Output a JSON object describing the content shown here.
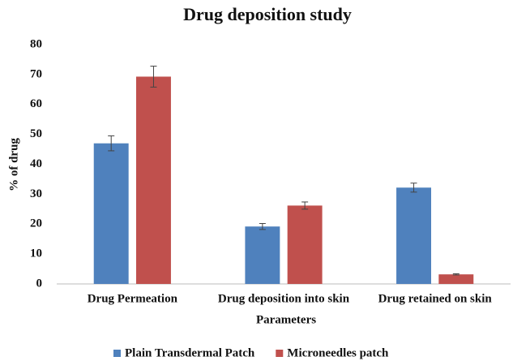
{
  "chart_data": {
    "type": "bar",
    "title": "Drug deposition study",
    "x_label": "Parameters",
    "y_label": "% of drug",
    "categories": [
      "Drug Permeation",
      "Drug deposition into skin",
      "Drug retained on skin"
    ],
    "series": [
      {
        "name": "Plain Transdermal Patch",
        "color": "#4f81bd",
        "values": [
          47,
          19.2,
          32.2
        ],
        "errors": [
          2.5,
          1,
          1.5
        ]
      },
      {
        "name": "Microneedles patch",
        "color": "#c0504d",
        "values": [
          69.3,
          26.2,
          3.2
        ],
        "errors": [
          3.5,
          1.2,
          0.2
        ]
      }
    ],
    "ylim": [
      0,
      80
    ],
    "yticks": [
      0,
      10,
      20,
      30,
      40,
      50,
      60,
      70,
      80
    ],
    "grid": false,
    "legend": "bottom"
  }
}
